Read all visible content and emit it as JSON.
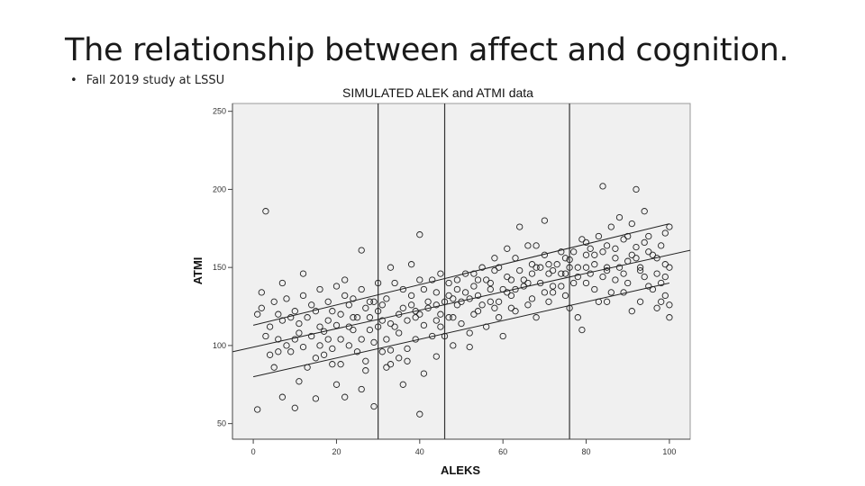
{
  "slide": {
    "title": "The relationship between affect and cognition.",
    "bullet": "Fall 2019 study at LSSU"
  },
  "chart_data": {
    "type": "scatter",
    "title": "SIMULATED ALEK and ATMI data",
    "xlabel": "ALEKS",
    "ylabel": "ATMI",
    "xlim": [
      -5,
      105
    ],
    "ylim": [
      40,
      255
    ],
    "x_ticks": [
      0,
      20,
      40,
      60,
      80,
      100
    ],
    "y_ticks": [
      50,
      100,
      150,
      200,
      250
    ],
    "background_color": "#f0f0f0",
    "marker_color": "#222222",
    "vertical_reference_lines": [
      30,
      46,
      76
    ],
    "fit_lines": [
      {
        "x": [
          0,
          100
        ],
        "y": [
          113,
          178
        ]
      },
      {
        "x": [
          -5,
          105
        ],
        "y": [
          96,
          161
        ]
      },
      {
        "x": [
          0,
          100
        ],
        "y": [
          80,
          140
        ]
      }
    ],
    "points": [
      [
        3,
        186
      ],
      [
        1,
        59
      ],
      [
        29,
        61
      ],
      [
        40,
        56
      ],
      [
        36,
        75
      ],
      [
        7,
        67
      ],
      [
        10,
        60
      ],
      [
        15,
        66
      ],
      [
        22,
        67
      ],
      [
        26,
        72
      ],
      [
        20,
        75
      ],
      [
        11,
        77
      ],
      [
        32,
        86
      ],
      [
        19,
        88
      ],
      [
        5,
        86
      ],
      [
        27,
        90
      ],
      [
        33,
        97
      ],
      [
        37,
        98
      ],
      [
        41,
        82
      ],
      [
        44,
        93
      ],
      [
        48,
        100
      ],
      [
        52,
        99
      ],
      [
        30,
        140
      ],
      [
        33,
        150
      ],
      [
        38,
        152
      ],
      [
        40,
        171
      ],
      [
        26,
        161
      ],
      [
        22,
        142
      ],
      [
        12,
        146
      ],
      [
        7,
        140
      ],
      [
        2,
        134
      ],
      [
        1,
        120
      ],
      [
        4,
        112
      ],
      [
        6,
        104
      ],
      [
        9,
        96
      ],
      [
        11,
        108
      ],
      [
        13,
        118
      ],
      [
        15,
        122
      ],
      [
        17,
        109
      ],
      [
        18,
        104
      ],
      [
        20,
        113
      ],
      [
        21,
        120
      ],
      [
        23,
        126
      ],
      [
        24,
        110
      ],
      [
        26,
        104
      ],
      [
        28,
        118
      ],
      [
        29,
        128
      ],
      [
        31,
        126
      ],
      [
        33,
        114
      ],
      [
        35,
        108
      ],
      [
        36,
        124
      ],
      [
        38,
        132
      ],
      [
        39,
        118
      ],
      [
        41,
        113
      ],
      [
        42,
        128
      ],
      [
        44,
        134
      ],
      [
        45,
        120
      ],
      [
        47,
        140
      ],
      [
        48,
        130
      ],
      [
        50,
        128
      ],
      [
        51,
        146
      ],
      [
        53,
        138
      ],
      [
        54,
        132
      ],
      [
        55,
        150
      ],
      [
        56,
        142
      ],
      [
        57,
        128
      ],
      [
        58,
        124
      ],
      [
        59,
        150
      ],
      [
        60,
        136
      ],
      [
        61,
        144
      ],
      [
        62,
        132
      ],
      [
        63,
        156
      ],
      [
        64,
        148
      ],
      [
        65,
        138
      ],
      [
        66,
        126
      ],
      [
        67,
        152
      ],
      [
        68,
        164
      ],
      [
        69,
        140
      ],
      [
        70,
        158
      ],
      [
        71,
        146
      ],
      [
        72,
        134
      ],
      [
        73,
        152
      ],
      [
        74,
        160
      ],
      [
        75,
        146
      ],
      [
        76,
        155
      ],
      [
        77,
        140
      ],
      [
        78,
        150
      ],
      [
        79,
        168
      ],
      [
        80,
        158
      ],
      [
        81,
        146
      ],
      [
        82,
        136
      ],
      [
        83,
        170
      ],
      [
        84,
        160
      ],
      [
        85,
        150
      ],
      [
        86,
        176
      ],
      [
        87,
        162
      ],
      [
        88,
        182
      ],
      [
        89,
        168
      ],
      [
        90,
        154
      ],
      [
        91,
        178
      ],
      [
        92,
        163
      ],
      [
        93,
        148
      ],
      [
        94,
        186
      ],
      [
        95,
        170
      ],
      [
        96,
        158
      ],
      [
        97,
        146
      ],
      [
        98,
        164
      ],
      [
        99,
        152
      ],
      [
        100,
        176
      ],
      [
        100,
        126
      ],
      [
        99,
        132
      ],
      [
        98,
        140
      ],
      [
        97,
        124
      ],
      [
        95,
        138
      ],
      [
        93,
        128
      ],
      [
        91,
        122
      ],
      [
        89,
        134
      ],
      [
        87,
        142
      ],
      [
        85,
        128
      ],
      [
        84,
        202
      ],
      [
        92,
        200
      ],
      [
        70,
        180
      ],
      [
        66,
        164
      ],
      [
        64,
        176
      ],
      [
        61,
        162
      ],
      [
        58,
        156
      ],
      [
        56,
        112
      ],
      [
        54,
        122
      ],
      [
        52,
        108
      ],
      [
        50,
        114
      ],
      [
        48,
        118
      ],
      [
        46,
        106
      ],
      [
        45,
        146
      ],
      [
        43,
        142
      ],
      [
        41,
        136
      ],
      [
        39,
        104
      ],
      [
        37,
        90
      ],
      [
        35,
        92
      ],
      [
        33,
        88
      ],
      [
        31,
        96
      ],
      [
        29,
        102
      ],
      [
        27,
        84
      ],
      [
        25,
        96
      ],
      [
        23,
        100
      ],
      [
        21,
        88
      ],
      [
        19,
        98
      ],
      [
        17,
        94
      ],
      [
        15,
        92
      ],
      [
        13,
        86
      ],
      [
        12,
        99
      ],
      [
        10,
        104
      ],
      [
        8,
        100
      ],
      [
        6,
        96
      ],
      [
        4,
        94
      ],
      [
        3,
        106
      ],
      [
        2,
        124
      ],
      [
        5,
        128
      ],
      [
        8,
        130
      ],
      [
        10,
        122
      ],
      [
        12,
        132
      ],
      [
        14,
        126
      ],
      [
        16,
        136
      ],
      [
        18,
        128
      ],
      [
        20,
        138
      ],
      [
        22,
        132
      ],
      [
        24,
        130
      ],
      [
        26,
        136
      ],
      [
        28,
        128
      ],
      [
        30,
        122
      ],
      [
        32,
        130
      ],
      [
        34,
        140
      ],
      [
        36,
        136
      ],
      [
        38,
        126
      ],
      [
        40,
        142
      ],
      [
        42,
        124
      ],
      [
        44,
        116
      ],
      [
        46,
        128
      ],
      [
        47,
        132
      ],
      [
        49,
        142
      ],
      [
        51,
        134
      ],
      [
        53,
        120
      ],
      [
        55,
        126
      ],
      [
        57,
        140
      ],
      [
        59,
        118
      ],
      [
        60,
        106
      ],
      [
        62,
        124
      ],
      [
        63,
        136
      ],
      [
        65,
        142
      ],
      [
        67,
        130
      ],
      [
        68,
        118
      ],
      [
        69,
        150
      ],
      [
        71,
        128
      ],
      [
        72,
        138
      ],
      [
        74,
        146
      ],
      [
        75,
        132
      ],
      [
        76,
        124
      ],
      [
        77,
        160
      ],
      [
        78,
        118
      ],
      [
        79,
        110
      ],
      [
        80,
        140
      ],
      [
        81,
        162
      ],
      [
        82,
        152
      ],
      [
        83,
        128
      ],
      [
        84,
        144
      ],
      [
        86,
        134
      ],
      [
        88,
        150
      ],
      [
        90,
        140
      ],
      [
        92,
        156
      ],
      [
        94,
        144
      ],
      [
        96,
        136
      ],
      [
        98,
        128
      ],
      [
        100,
        118
      ],
      [
        100,
        150
      ],
      [
        7,
        116
      ],
      [
        9,
        118
      ],
      [
        14,
        106
      ],
      [
        16,
        100
      ],
      [
        18,
        116
      ],
      [
        21,
        104
      ],
      [
        23,
        112
      ],
      [
        25,
        118
      ],
      [
        27,
        124
      ],
      [
        30,
        112
      ],
      [
        32,
        104
      ],
      [
        34,
        112
      ],
      [
        37,
        116
      ],
      [
        39,
        122
      ],
      [
        43,
        106
      ],
      [
        45,
        112
      ],
      [
        47,
        118
      ],
      [
        49,
        126
      ],
      [
        52,
        130
      ],
      [
        54,
        142
      ],
      [
        57,
        136
      ],
      [
        59,
        128
      ],
      [
        61,
        134
      ],
      [
        63,
        122
      ],
      [
        66,
        140
      ],
      [
        68,
        150
      ],
      [
        70,
        134
      ],
      [
        72,
        148
      ],
      [
        74,
        138
      ],
      [
        76,
        150
      ],
      [
        78,
        144
      ],
      [
        80,
        150
      ],
      [
        82,
        158
      ],
      [
        85,
        148
      ],
      [
        87,
        156
      ],
      [
        89,
        146
      ],
      [
        91,
        158
      ],
      [
        93,
        150
      ],
      [
        95,
        160
      ],
      [
        97,
        156
      ],
      [
        99,
        144
      ],
      [
        6,
        120
      ],
      [
        11,
        114
      ],
      [
        16,
        112
      ],
      [
        19,
        122
      ],
      [
        24,
        118
      ],
      [
        28,
        110
      ],
      [
        31,
        116
      ],
      [
        35,
        120
      ],
      [
        40,
        120
      ],
      [
        44,
        126
      ],
      [
        49,
        136
      ],
      [
        53,
        146
      ],
      [
        58,
        148
      ],
      [
        62,
        142
      ],
      [
        67,
        146
      ],
      [
        71,
        152
      ],
      [
        75,
        156
      ],
      [
        80,
        166
      ],
      [
        85,
        164
      ],
      [
        90,
        170
      ],
      [
        94,
        166
      ],
      [
        99,
        172
      ]
    ]
  }
}
